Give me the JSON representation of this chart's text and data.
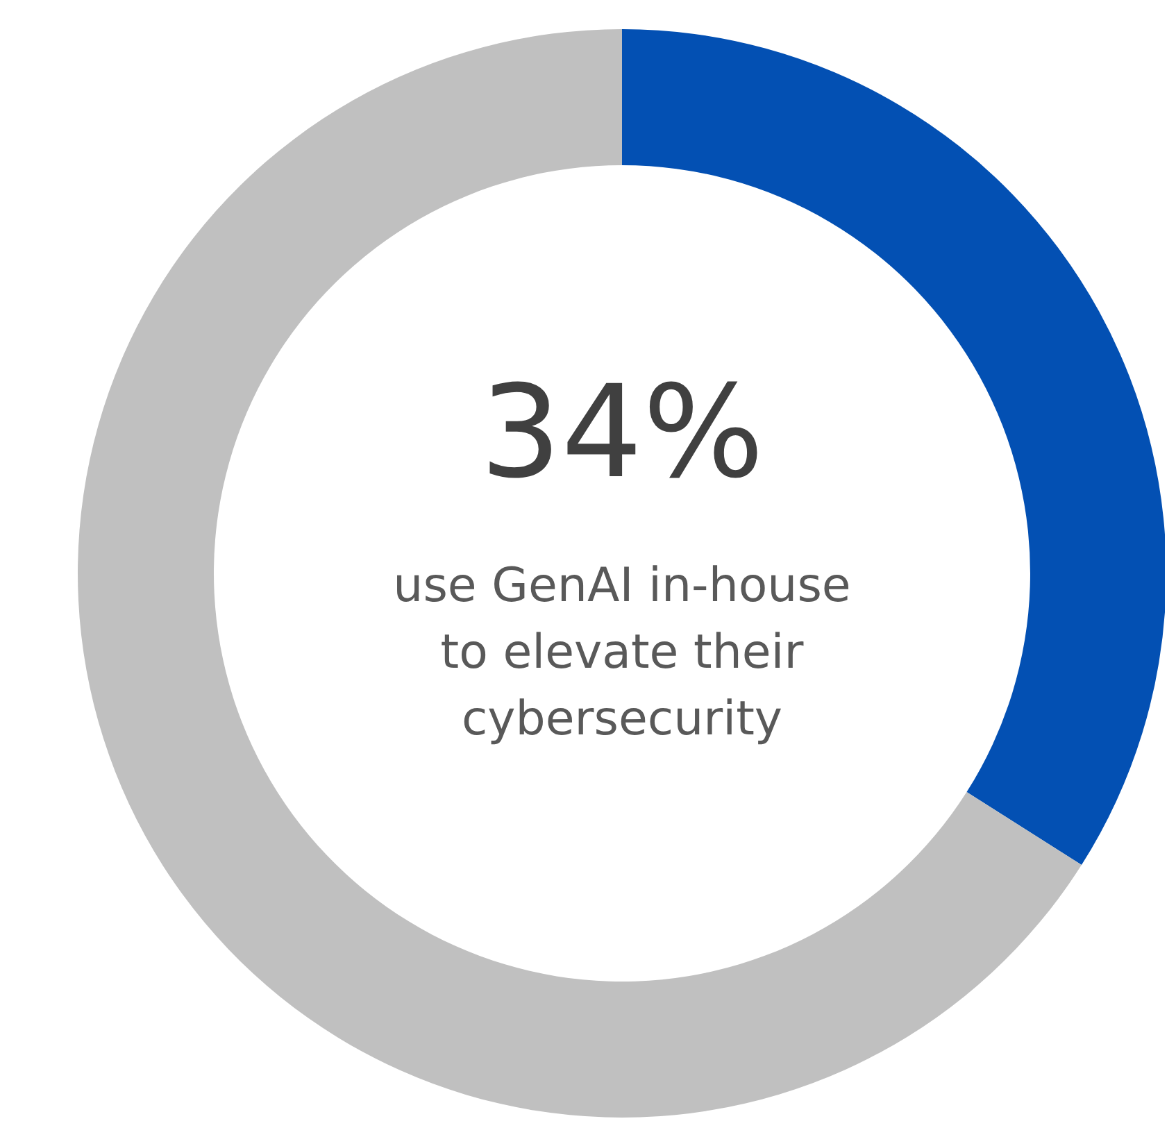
{
  "chart_data": {
    "type": "donut",
    "categories": [
      null,
      null
    ],
    "values": [
      34,
      66
    ],
    "colors": [
      "#0350b3",
      "#c0c0c0"
    ],
    "value_labels": [
      "34%",
      null
    ],
    "annotations": [
      "use GenAI in-house",
      "to elevate their",
      "cybersecurity"
    ]
  }
}
